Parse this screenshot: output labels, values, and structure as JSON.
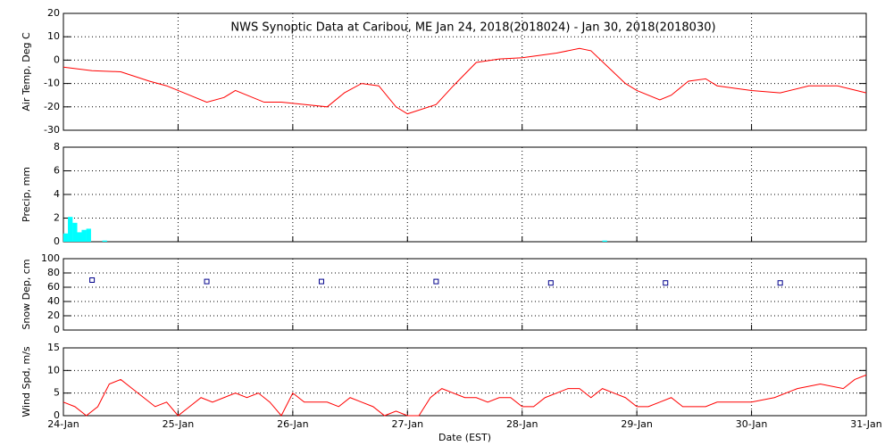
{
  "chart_data": [
    {
      "type": "line",
      "title": "NWS Synoptic Data at Caribou, ME   Jan 24, 2018(2018024) - Jan 30, 2018(2018030)",
      "ylabel": "Air Temp, Deg C",
      "color": "#ff0000",
      "grid": true,
      "xlim": [
        0,
        7
      ],
      "xticks": [
        0,
        1,
        2,
        3,
        4,
        5,
        6,
        7
      ],
      "ylim": [
        -30,
        20
      ],
      "yticks": [
        -30,
        -20,
        -10,
        0,
        10,
        20
      ],
      "x": [
        0,
        0.25,
        0.5,
        0.75,
        0.9,
        1.0,
        1.1,
        1.25,
        1.4,
        1.5,
        1.75,
        1.9,
        2.1,
        2.3,
        2.45,
        2.6,
        2.75,
        2.9,
        3.0,
        3.25,
        3.4,
        3.5,
        3.6,
        3.8,
        4.0,
        4.15,
        4.3,
        4.5,
        4.6,
        4.75,
        4.9,
        5.0,
        5.2,
        5.3,
        5.45,
        5.6,
        5.7,
        6.0,
        6.25,
        6.5,
        6.75,
        7.0
      ],
      "values": [
        -3,
        -4.5,
        -5,
        -9,
        -11,
        -13,
        -15,
        -18,
        -16,
        -13,
        -18,
        -18,
        -19,
        -20,
        -14,
        -10,
        -11,
        -20,
        -23,
        -19,
        -11,
        -6,
        -1,
        0.5,
        1,
        2,
        3,
        5,
        4,
        -3,
        -10,
        -13,
        -17,
        -15,
        -9,
        -8,
        -11,
        -13,
        -14,
        -11,
        -11,
        -14
      ]
    },
    {
      "type": "bar",
      "ylabel": "Precip, mm",
      "color": "#00ffff",
      "grid": true,
      "xlim": [
        0,
        7
      ],
      "xticks": [
        0,
        1,
        2,
        3,
        4,
        5,
        6,
        7
      ],
      "ylim": [
        0,
        8
      ],
      "yticks": [
        0,
        2,
        4,
        6,
        8
      ],
      "x": [
        0.02,
        0.06,
        0.1,
        0.14,
        0.18,
        0.22,
        0.36,
        4.72
      ],
      "values": [
        0.7,
        2.1,
        1.6,
        0.8,
        1.0,
        1.1,
        0.1,
        0.1
      ]
    },
    {
      "type": "scatter",
      "ylabel": "Snow Dep, cm",
      "color": "#00008b",
      "grid": true,
      "xlim": [
        0,
        7
      ],
      "xticks": [
        0,
        1,
        2,
        3,
        4,
        5,
        6,
        7
      ],
      "ylim": [
        0,
        100
      ],
      "yticks": [
        0,
        20,
        40,
        60,
        80,
        100
      ],
      "x": [
        0.25,
        1.25,
        2.25,
        3.25,
        4.25,
        5.25,
        6.25
      ],
      "values": [
        70,
        68,
        68,
        68,
        66,
        66,
        66
      ]
    },
    {
      "type": "line",
      "ylabel": "Wind Spd, m/s",
      "xlabel": "Date (EST)",
      "color": "#ff0000",
      "grid": true,
      "xlim": [
        0,
        7
      ],
      "xticks": [
        {
          "value": 0,
          "label": "24-Jan"
        },
        {
          "value": 1,
          "label": "25-Jan"
        },
        {
          "value": 2,
          "label": "26-Jan"
        },
        {
          "value": 3,
          "label": "27-Jan"
        },
        {
          "value": 4,
          "label": "28-Jan"
        },
        {
          "value": 5,
          "label": "29-Jan"
        },
        {
          "value": 6,
          "label": "30-Jan"
        },
        {
          "value": 7,
          "label": "31-Jan"
        }
      ],
      "ylim": [
        0,
        15
      ],
      "yticks": [
        0,
        5,
        10,
        15
      ],
      "x": [
        0,
        0.1,
        0.2,
        0.3,
        0.4,
        0.5,
        0.6,
        0.7,
        0.8,
        0.9,
        1.0,
        1.1,
        1.2,
        1.3,
        1.4,
        1.5,
        1.6,
        1.7,
        1.8,
        1.9,
        2.0,
        2.1,
        2.2,
        2.3,
        2.4,
        2.5,
        2.6,
        2.7,
        2.8,
        2.9,
        3.0,
        3.1,
        3.2,
        3.3,
        3.4,
        3.5,
        3.6,
        3.7,
        3.8,
        3.9,
        4.0,
        4.1,
        4.2,
        4.3,
        4.4,
        4.5,
        4.6,
        4.7,
        4.8,
        4.9,
        5.0,
        5.1,
        5.2,
        5.3,
        5.4,
        5.5,
        5.6,
        5.7,
        5.8,
        5.9,
        6.0,
        6.2,
        6.4,
        6.6,
        6.8,
        6.9,
        7.0
      ],
      "values": [
        3,
        2,
        0,
        2,
        7,
        8,
        6,
        4,
        2,
        3,
        0,
        2,
        4,
        3,
        4,
        5,
        4,
        5,
        3,
        0,
        5,
        3,
        3,
        3,
        2,
        4,
        3,
        2,
        0,
        1,
        0,
        0,
        4,
        6,
        5,
        4,
        4,
        3,
        4,
        4,
        2,
        2,
        4,
        5,
        6,
        6,
        4,
        6,
        5,
        4,
        2,
        2,
        3,
        4,
        2,
        2,
        2,
        3,
        3,
        3,
        3,
        4,
        6,
        7,
        6,
        8,
        9
      ]
    }
  ]
}
